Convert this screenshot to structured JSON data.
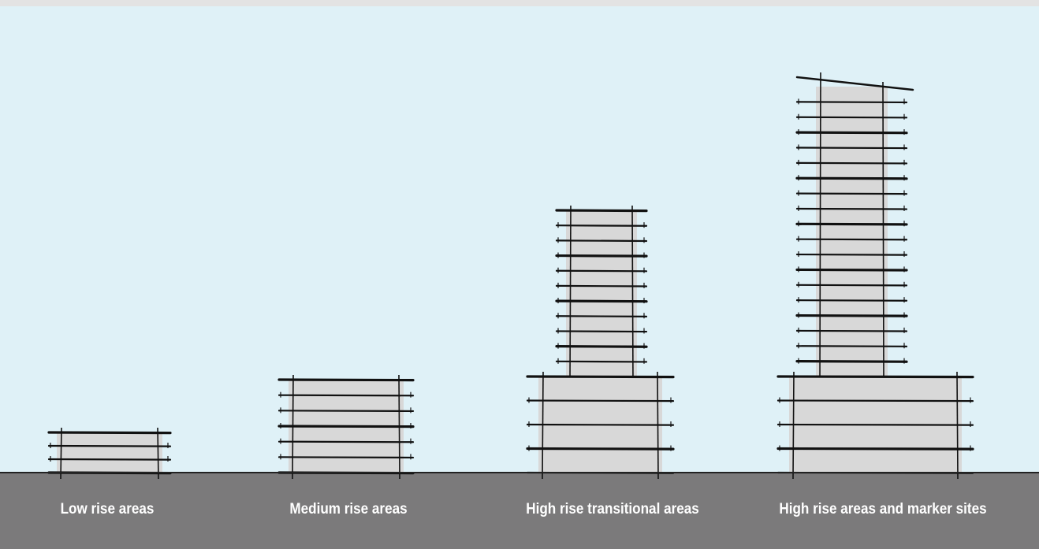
{
  "labels": {
    "low": "Low rise areas",
    "medium": "Medium rise areas",
    "transitional": "High rise transitional areas",
    "high": "High rise areas and marker sites"
  },
  "colors": {
    "sky": "#dff1f7",
    "ground": "#7b7a7b",
    "building_fill": "#d8d8d8",
    "line": "#111111",
    "label_text": "#ffffff"
  },
  "buildings": [
    {
      "key": "low",
      "podium_storeys": 3,
      "tower_storeys": 0
    },
    {
      "key": "medium",
      "podium_storeys": 6,
      "tower_storeys": 0
    },
    {
      "key": "transitional",
      "podium_storeys": 4,
      "tower_storeys": 11
    },
    {
      "key": "high",
      "podium_storeys": 4,
      "tower_storeys": 19
    }
  ]
}
